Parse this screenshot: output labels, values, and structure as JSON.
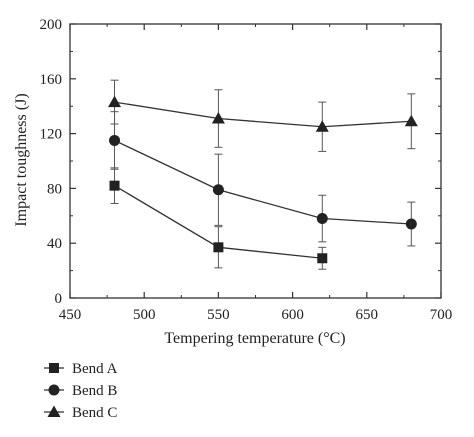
{
  "chart_data": {
    "type": "line",
    "xlabel": "Tempering temperature (°C)",
    "ylabel": "Impact toughness (J)",
    "xlim": [
      450,
      700
    ],
    "ylim": [
      0,
      200
    ],
    "x_ticks": [
      "450",
      "500",
      "550",
      "600",
      "650",
      "700"
    ],
    "y_ticks": [
      "0",
      "40",
      "80",
      "120",
      "160",
      "200"
    ],
    "grid": false,
    "legend_position": "bottom-left, below the plot",
    "series": [
      {
        "name": "Bend A",
        "marker": "square",
        "x": [
          480,
          550,
          620
        ],
        "y": [
          82,
          37,
          29
        ],
        "err": [
          13,
          15,
          8
        ]
      },
      {
        "name": "Bend B",
        "marker": "circle",
        "x": [
          480,
          550,
          620,
          680
        ],
        "y": [
          115,
          79,
          58,
          54
        ],
        "err": [
          21,
          26,
          17,
          16
        ]
      },
      {
        "name": "Bend C",
        "marker": "triangle",
        "x": [
          480,
          550,
          620,
          680
        ],
        "y": [
          143,
          131,
          125,
          129
        ],
        "err": [
          16,
          21,
          18,
          20
        ]
      }
    ]
  }
}
